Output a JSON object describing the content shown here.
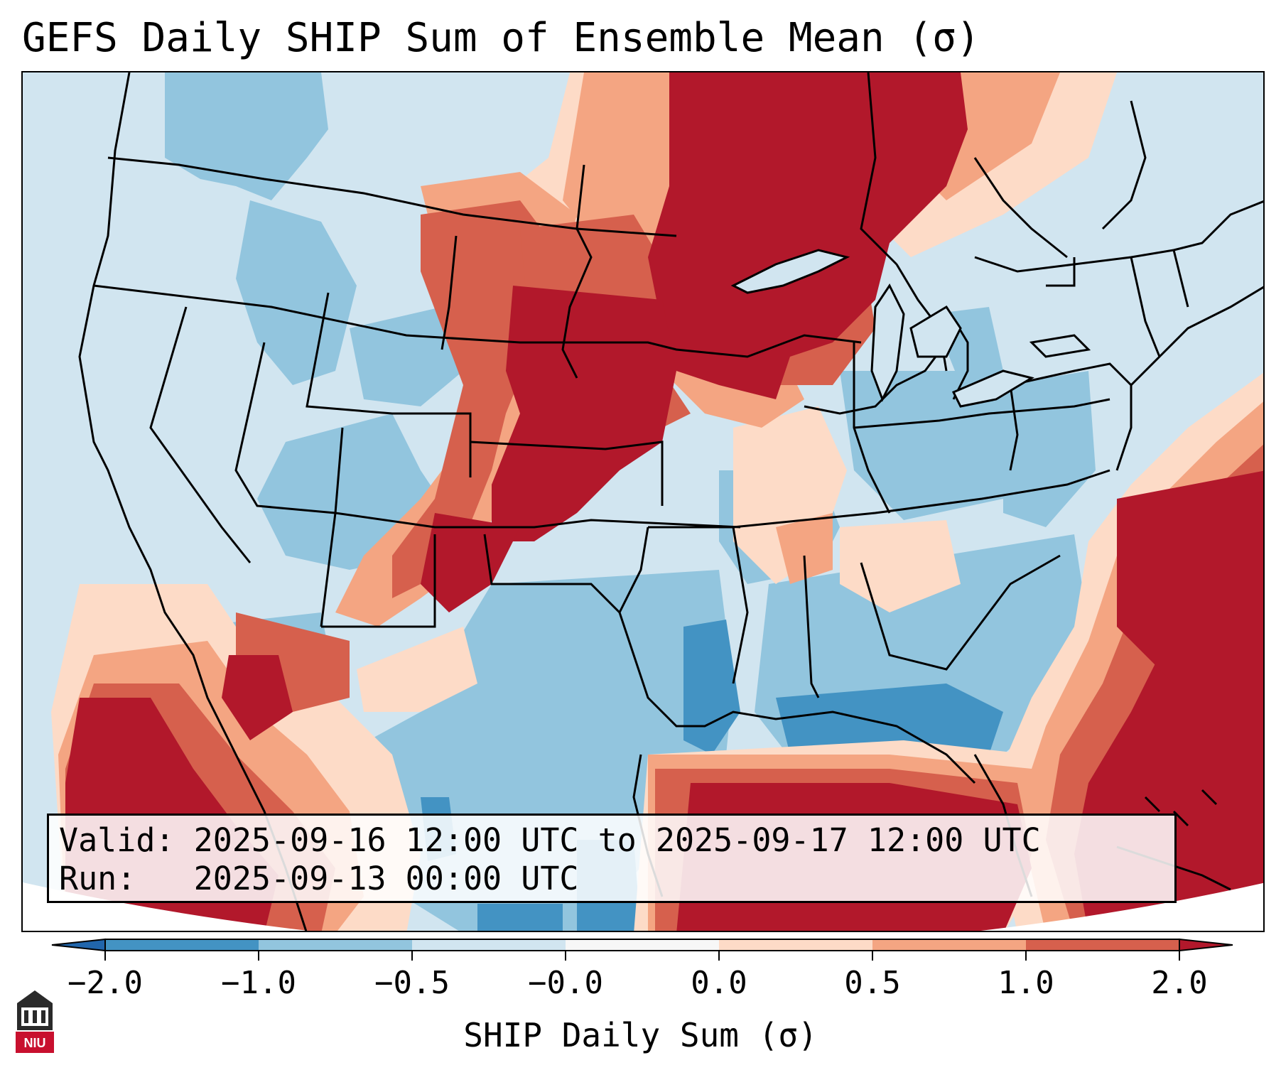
{
  "title": "GEFS Daily SHIP Sum of Ensemble Mean (σ)",
  "info": {
    "valid_label": "Valid:",
    "valid_value": "2025-09-16 12:00 UTC to 2025-09-17 12:00 UTC",
    "run_label": "Run:",
    "run_value": "2025-09-13 00:00 UTC"
  },
  "colorbar": {
    "label": "SHIP Daily Sum (σ)",
    "ticks": [
      "−2.0",
      "−1.0",
      "−0.5",
      "−0.0",
      "0.0",
      "0.5",
      "1.0",
      "2.0"
    ],
    "colors": [
      "#4393c3",
      "#92c5de",
      "#d1e5f0",
      "#f7f7f7",
      "#fddbc7",
      "#f4a582",
      "#d6604d"
    ],
    "under_color": "#2166ac",
    "over_color": "#b2182b"
  },
  "map": {
    "region": "CONUS",
    "fill_colors": {
      "strong_neg": "#4393c3",
      "neg": "#92c5de",
      "weak_neg": "#d1e5f0",
      "weak_pos": "#fddbc7",
      "pos": "#f4a582",
      "mod_pos": "#d6604d",
      "strong_pos": "#b2182b"
    }
  },
  "logo": {
    "text": "NIU",
    "icon": "niu-logo-icon"
  }
}
